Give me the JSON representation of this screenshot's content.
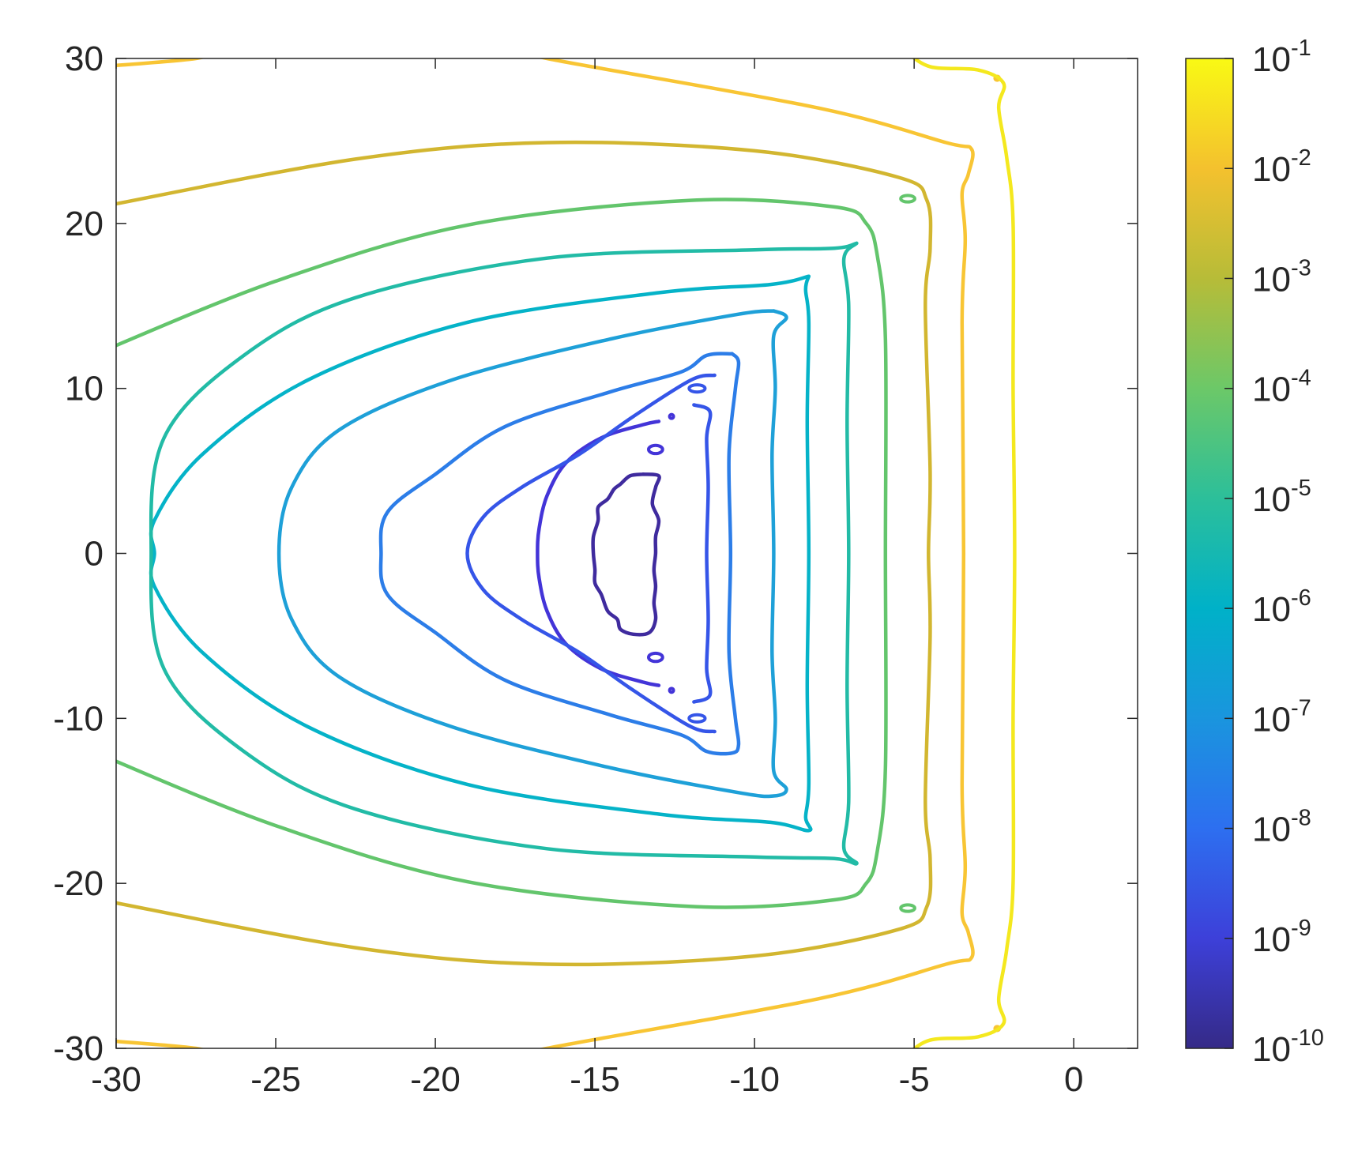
{
  "chart_data": {
    "type": "contour",
    "title": "",
    "xlabel": "",
    "ylabel": "",
    "xlim": [
      -30,
      2
    ],
    "ylim": [
      -30,
      30
    ],
    "x_ticks": [
      "-30",
      "-25",
      "-20",
      "-15",
      "-10",
      "-5",
      "0"
    ],
    "y_ticks": [
      "30",
      "20",
      "10",
      "0",
      "-10",
      "-20",
      "-30"
    ],
    "grid": false,
    "colormap": "parula",
    "colorbar": {
      "scale": "log",
      "range_exponents": [
        -10,
        -1
      ],
      "base_label": "10",
      "tick_exponents": [
        "-1",
        "-2",
        "-3",
        "-4",
        "-5",
        "-6",
        "-7",
        "-8",
        "-9",
        "-10"
      ],
      "gradient": [
        "#352a87",
        "#3d40d9",
        "#2d6ff0",
        "#1a95de",
        "#00b1c8",
        "#2cbf9a",
        "#6cc868",
        "#b7bc38",
        "#f4c12e",
        "#f9f914"
      ]
    },
    "contours": [
      {
        "level_exponent": -10,
        "color": "#3f2b9e"
      },
      {
        "level_exponent": -9,
        "color": "#4334d8"
      },
      {
        "level_exponent": -8,
        "color": "#3555e8"
      },
      {
        "level_exponent": -7,
        "color": "#2c7de8"
      },
      {
        "level_exponent": -6,
        "color": "#1ea0d8"
      },
      {
        "level_exponent": -5.5,
        "color": "#05b3c8"
      },
      {
        "level_exponent": -5,
        "color": "#22bba6"
      },
      {
        "level_exponent": -4,
        "color": "#63c56c"
      },
      {
        "level_exponent": -3,
        "color": "#d2b630"
      },
      {
        "level_exponent": -2,
        "color": "#f8c534"
      },
      {
        "level_exponent": -1.2,
        "color": "#f4e81e"
      }
    ]
  }
}
